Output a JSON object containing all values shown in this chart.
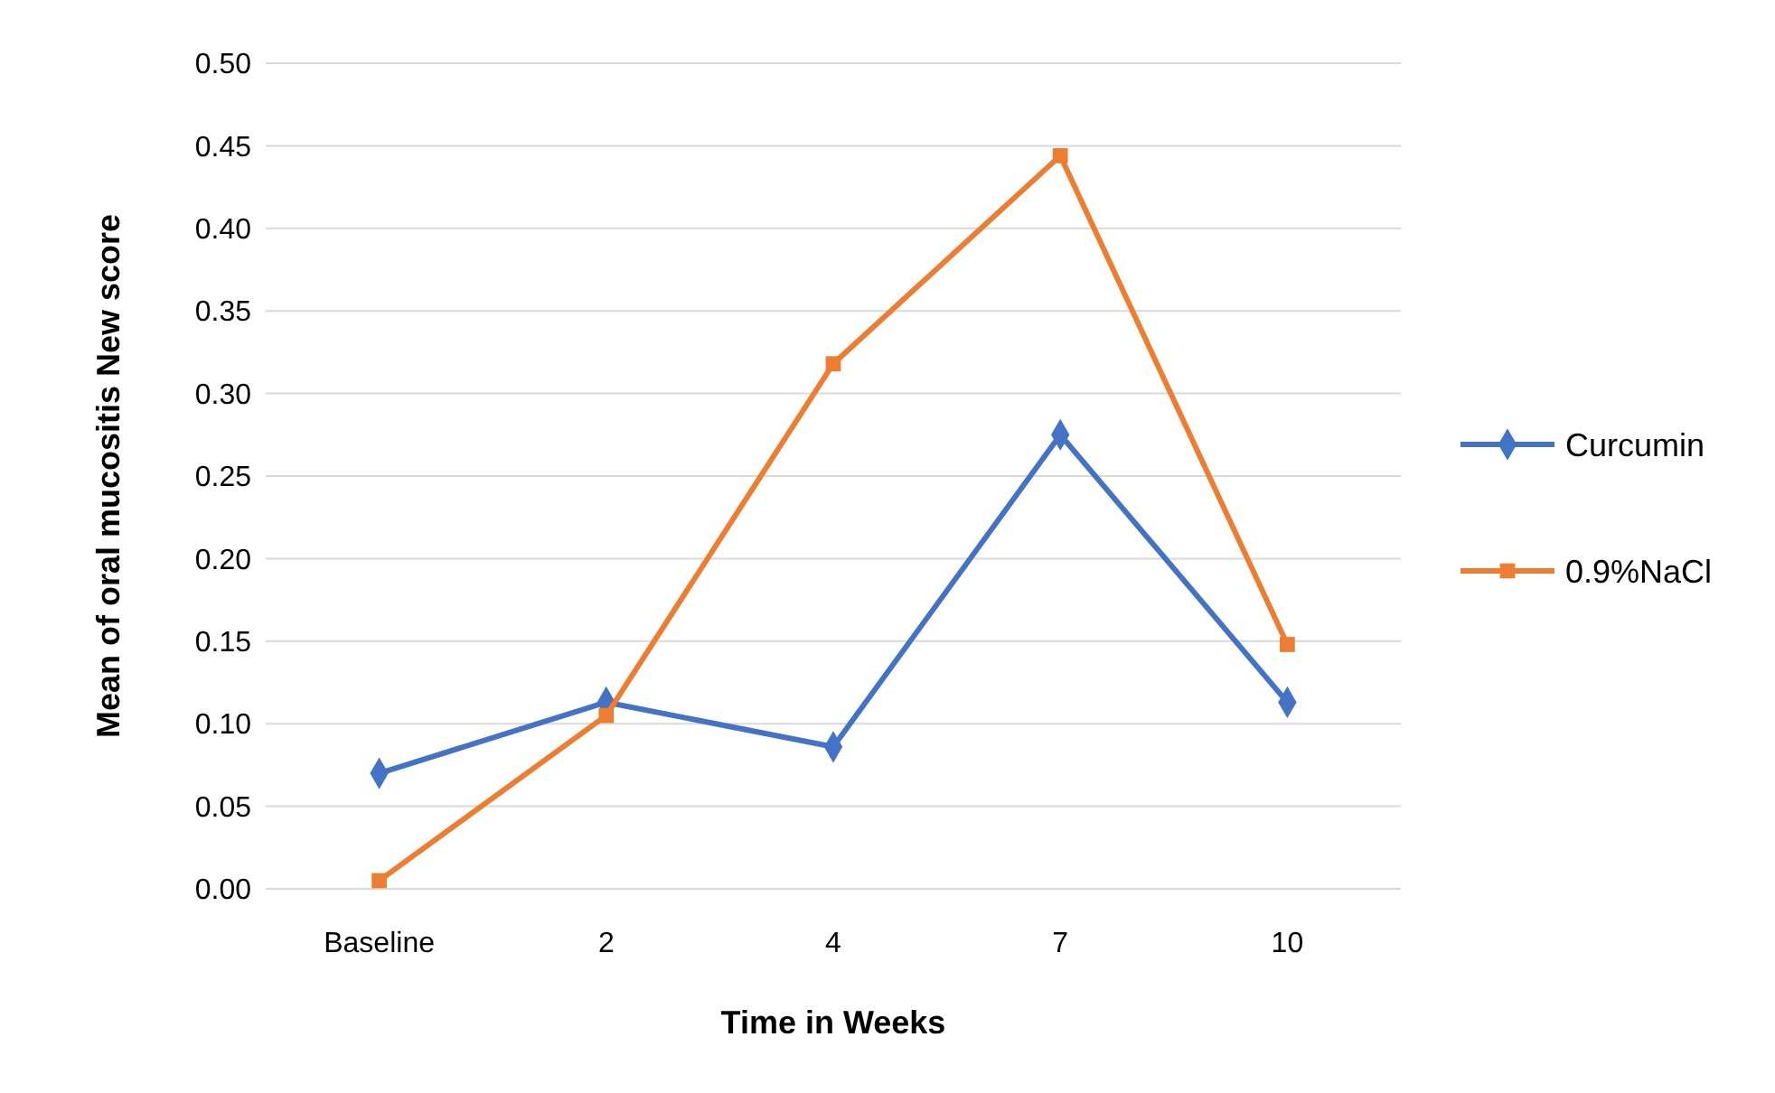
{
  "chart_data": {
    "type": "line",
    "xlabel": "Time in Weeks",
    "ylabel": "Mean of oral mucositis New score",
    "categories": [
      "Baseline",
      "2",
      "4",
      "7",
      "10"
    ],
    "series": [
      {
        "name": "Curcumin",
        "color": "#4472c4",
        "marker": "diamond",
        "values": [
          0.07,
          0.113,
          0.086,
          0.275,
          0.113
        ]
      },
      {
        "name": "0.9%NaCl",
        "color": "#ed7d31",
        "marker": "square",
        "values": [
          0.005,
          0.105,
          0.318,
          0.444,
          0.148
        ]
      }
    ],
    "ylim": [
      0,
      0.5
    ],
    "yticks": [
      {
        "value": 0,
        "label": "0.00"
      },
      {
        "value": 0.05,
        "label": "0.05"
      },
      {
        "value": 0.1,
        "label": "0.10"
      },
      {
        "value": 0.15,
        "label": "0.15"
      },
      {
        "value": 0.2,
        "label": "0.20"
      },
      {
        "value": 0.25,
        "label": "0.25"
      },
      {
        "value": 0.3,
        "label": "0.30"
      },
      {
        "value": 0.35,
        "label": "0.35"
      },
      {
        "value": 0.4,
        "label": "0.40"
      },
      {
        "value": 0.45,
        "label": "0.45"
      },
      {
        "value": 0.5,
        "label": "0.50"
      }
    ],
    "grid": "y",
    "legend": "right"
  }
}
